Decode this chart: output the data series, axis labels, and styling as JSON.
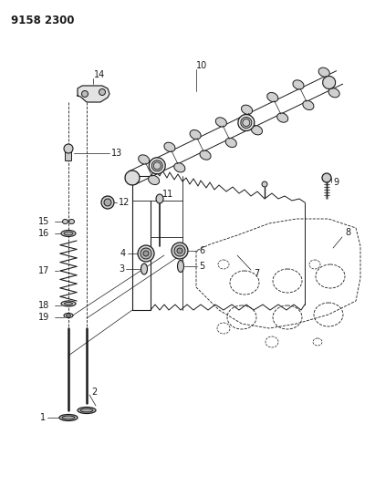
{
  "title": "9158 2300",
  "bg_color": "#ffffff",
  "lc": "#1a1a1a",
  "fig_width": 4.11,
  "fig_height": 5.33,
  "dpi": 100
}
